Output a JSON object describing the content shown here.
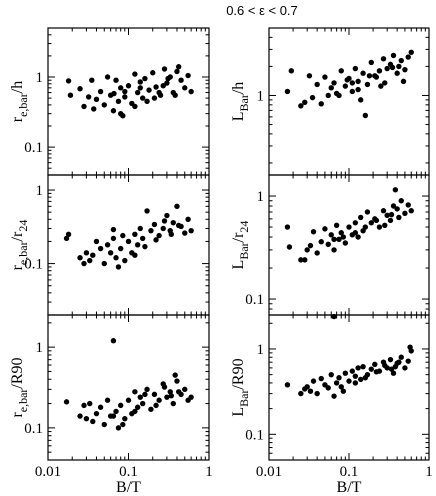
{
  "figure": {
    "title": "0.6 < ε < 0.7"
  },
  "chart_data": [
    {
      "type": "scatter",
      "position": "top-left",
      "xlabel": "",
      "ylabel_main": "r",
      "ylabel_sub": "e,bar",
      "ylabel_rest": "/h",
      "xscale": "log",
      "yscale": "log",
      "xlim": [
        0.01,
        1
      ],
      "ylim": [
        0.04,
        5
      ],
      "yticks": [
        {
          "value": 0.1,
          "label": "0.1"
        },
        {
          "value": 1,
          "label": "1"
        }
      ],
      "xticks": [],
      "x": [
        0.018,
        0.019,
        0.025,
        0.028,
        0.032,
        0.035,
        0.037,
        0.04,
        0.045,
        0.05,
        0.055,
        0.06,
        0.065,
        0.07,
        0.075,
        0.08,
        0.085,
        0.09,
        0.1,
        0.11,
        0.12,
        0.13,
        0.14,
        0.15,
        0.16,
        0.18,
        0.2,
        0.22,
        0.25,
        0.28,
        0.3,
        0.33,
        0.36,
        0.4,
        0.45,
        0.5,
        0.55,
        0.6,
        0.08,
        0.12,
        0.17,
        0.24,
        0.31,
        0.38,
        0.42,
        0.27,
        0.21,
        0.14,
        0.09,
        0.066
      ],
      "y": [
        0.88,
        0.55,
        0.68,
        0.38,
        0.52,
        0.9,
        0.35,
        0.48,
        0.62,
        0.4,
        1.0,
        0.55,
        0.33,
        0.9,
        0.45,
        0.7,
        0.28,
        0.52,
        0.75,
        0.42,
        1.1,
        0.6,
        0.85,
        0.5,
        0.95,
        0.65,
        1.15,
        0.72,
        0.55,
        1.3,
        0.82,
        1.0,
        0.6,
        1.2,
        0.9,
        0.7,
        1.05,
        0.62,
        0.3,
        0.38,
        0.45,
        0.6,
        0.95,
        0.55,
        1.4,
        0.75,
        0.5,
        0.7,
        0.62,
        0.58
      ]
    },
    {
      "type": "scatter",
      "position": "top-right",
      "xlabel": "",
      "ylabel_main": "L",
      "ylabel_sub": "Bar",
      "ylabel_rest": "/h",
      "xscale": "log",
      "yscale": "log",
      "xlim": [
        0.01,
        1
      ],
      "ylim": [
        0.15,
        5
      ],
      "yticks": [
        {
          "value": 1,
          "label": "1"
        }
      ],
      "xticks": [],
      "x": [
        0.017,
        0.019,
        0.025,
        0.028,
        0.032,
        0.035,
        0.04,
        0.045,
        0.05,
        0.055,
        0.06,
        0.065,
        0.07,
        0.08,
        0.09,
        0.1,
        0.11,
        0.12,
        0.13,
        0.14,
        0.15,
        0.17,
        0.19,
        0.21,
        0.24,
        0.27,
        0.3,
        0.33,
        0.36,
        0.4,
        0.45,
        0.5,
        0.55,
        0.6,
        0.075,
        0.095,
        0.16,
        0.22,
        0.28,
        0.35,
        0.42,
        0.48,
        0.25,
        0.18,
        0.13,
        0.11
      ],
      "y": [
        1.1,
        1.8,
        0.78,
        0.85,
        1.6,
        0.95,
        1.3,
        0.82,
        1.55,
        1.0,
        1.2,
        1.35,
        1.05,
        1.8,
        1.25,
        1.5,
        1.1,
        1.9,
        1.4,
        0.9,
        1.7,
        1.3,
        2.2,
        1.6,
        1.8,
        2.4,
        1.9,
        2.1,
        2.6,
        1.7,
        2.3,
        1.85,
        2.5,
        2.8,
        1.0,
        1.45,
        0.62,
        1.55,
        1.35,
        1.95,
        2.0,
        1.4,
        1.25,
        1.6,
        1.15,
        1.35
      ]
    },
    {
      "type": "scatter",
      "position": "middle-left",
      "xlabel": "",
      "ylabel_main": "r",
      "ylabel_sub": "e,bar",
      "ylabel_rest": "/r",
      "ylabel_rest_sub": "24",
      "xscale": "log",
      "yscale": "log",
      "xlim": [
        0.01,
        1
      ],
      "ylim": [
        0.02,
        1.6
      ],
      "yticks": [
        {
          "value": 0.1,
          "label": "0.1"
        },
        {
          "value": 1,
          "label": "1"
        }
      ],
      "xticks": [],
      "x": [
        0.017,
        0.018,
        0.025,
        0.028,
        0.03,
        0.033,
        0.036,
        0.04,
        0.045,
        0.05,
        0.055,
        0.06,
        0.065,
        0.07,
        0.075,
        0.08,
        0.09,
        0.1,
        0.11,
        0.12,
        0.13,
        0.14,
        0.15,
        0.17,
        0.19,
        0.21,
        0.24,
        0.27,
        0.3,
        0.33,
        0.36,
        0.4,
        0.45,
        0.5,
        0.55,
        0.6,
        0.085,
        0.16,
        0.22,
        0.28,
        0.34,
        0.42,
        0.12,
        0.065
      ],
      "y": [
        0.22,
        0.25,
        0.12,
        0.1,
        0.14,
        0.11,
        0.13,
        0.2,
        0.16,
        0.1,
        0.18,
        0.14,
        0.22,
        0.12,
        0.09,
        0.16,
        0.11,
        0.2,
        0.14,
        0.25,
        0.18,
        0.3,
        0.22,
        0.52,
        0.28,
        0.34,
        0.24,
        0.3,
        0.45,
        0.28,
        0.36,
        0.6,
        0.32,
        0.26,
        0.4,
        0.28,
        0.24,
        0.17,
        0.21,
        0.38,
        0.25,
        0.33,
        0.13,
        0.29
      ]
    },
    {
      "type": "scatter",
      "position": "middle-right",
      "xlabel": "",
      "ylabel_main": "L",
      "ylabel_sub": "Bar",
      "ylabel_rest": "/r",
      "ylabel_rest_sub": "24",
      "xscale": "log",
      "yscale": "log",
      "xlim": [
        0.01,
        1
      ],
      "ylim": [
        0.07,
        1.6
      ],
      "yticks": [
        {
          "value": 0.1,
          "label": "0.1"
        },
        {
          "value": 1,
          "label": "1"
        }
      ],
      "xticks": [],
      "x": [
        0.017,
        0.018,
        0.025,
        0.028,
        0.03,
        0.033,
        0.036,
        0.04,
        0.045,
        0.05,
        0.055,
        0.06,
        0.065,
        0.07,
        0.075,
        0.08,
        0.09,
        0.1,
        0.11,
        0.12,
        0.13,
        0.14,
        0.15,
        0.17,
        0.19,
        0.21,
        0.24,
        0.27,
        0.3,
        0.33,
        0.36,
        0.4,
        0.45,
        0.5,
        0.55,
        0.6,
        0.085,
        0.16,
        0.22,
        0.28,
        0.34,
        0.42,
        0.12,
        0.065,
        0.38
      ],
      "y": [
        0.5,
        0.32,
        0.24,
        0.24,
        0.3,
        0.33,
        0.45,
        0.28,
        0.36,
        0.48,
        0.34,
        0.42,
        0.3,
        0.52,
        0.38,
        0.44,
        0.35,
        0.5,
        0.42,
        0.55,
        0.4,
        0.62,
        0.46,
        0.7,
        0.55,
        0.6,
        0.5,
        0.72,
        0.65,
        0.58,
        0.8,
        0.75,
        0.9,
        0.68,
        0.82,
        0.72,
        0.4,
        0.5,
        0.58,
        0.52,
        0.66,
        0.62,
        0.44,
        0.38,
        1.15
      ]
    },
    {
      "type": "scatter",
      "position": "bottom-left",
      "xlabel": "B/T",
      "ylabel_main": "r",
      "ylabel_sub": "e,bar",
      "ylabel_rest": "/R90",
      "xscale": "log",
      "yscale": "log",
      "xlim": [
        0.01,
        1
      ],
      "ylim": [
        0.04,
        2.5
      ],
      "yticks": [
        {
          "value": 0.1,
          "label": "0.1"
        },
        {
          "value": 1,
          "label": "1"
        }
      ],
      "xticks": [
        {
          "value": 0.01,
          "label": "0.01"
        },
        {
          "value": 0.1,
          "label": "0.1"
        },
        {
          "value": 1,
          "label": "1"
        }
      ],
      "x": [
        0.017,
        0.025,
        0.028,
        0.03,
        0.033,
        0.036,
        0.04,
        0.045,
        0.05,
        0.055,
        0.06,
        0.065,
        0.07,
        0.075,
        0.08,
        0.09,
        0.1,
        0.11,
        0.12,
        0.13,
        0.14,
        0.15,
        0.17,
        0.19,
        0.21,
        0.24,
        0.27,
        0.3,
        0.33,
        0.36,
        0.4,
        0.45,
        0.5,
        0.55,
        0.6,
        0.085,
        0.16,
        0.22,
        0.28,
        0.34,
        0.42,
        0.12,
        0.065,
        0.38
      ],
      "y": [
        0.21,
        0.14,
        0.19,
        0.13,
        0.2,
        0.12,
        0.15,
        0.18,
        0.11,
        0.22,
        0.14,
        1.2,
        0.16,
        0.1,
        0.19,
        0.13,
        0.22,
        0.15,
        0.28,
        0.18,
        0.24,
        0.2,
        0.3,
        0.17,
        0.26,
        0.22,
        0.35,
        0.24,
        0.28,
        0.2,
        0.38,
        0.26,
        0.3,
        0.22,
        0.24,
        0.11,
        0.26,
        0.19,
        0.32,
        0.25,
        0.28,
        0.16,
        0.14,
        0.45
      ]
    },
    {
      "type": "scatter",
      "position": "bottom-right",
      "xlabel": "B/T",
      "ylabel_main": "L",
      "ylabel_sub": "Bar",
      "ylabel_rest": "/R90",
      "xscale": "log",
      "yscale": "log",
      "xlim": [
        0.01,
        1
      ],
      "ylim": [
        0.05,
        2.5
      ],
      "yticks": [
        {
          "value": 0.1,
          "label": "0.1"
        },
        {
          "value": 1,
          "label": "1"
        }
      ],
      "xticks": [
        {
          "value": 0.01,
          "label": "0.01"
        },
        {
          "value": 0.1,
          "label": "0.1"
        },
        {
          "value": 1,
          "label": "1"
        }
      ],
      "x": [
        0.017,
        0.025,
        0.028,
        0.03,
        0.033,
        0.036,
        0.04,
        0.045,
        0.05,
        0.055,
        0.06,
        0.065,
        0.07,
        0.075,
        0.08,
        0.09,
        0.1,
        0.11,
        0.12,
        0.13,
        0.14,
        0.15,
        0.17,
        0.19,
        0.21,
        0.24,
        0.27,
        0.3,
        0.33,
        0.36,
        0.4,
        0.45,
        0.5,
        0.55,
        0.6,
        0.085,
        0.16,
        0.22,
        0.28,
        0.34,
        0.42,
        0.12,
        0.065,
        0.38,
        0.58
      ],
      "y": [
        0.38,
        0.3,
        0.34,
        0.36,
        0.32,
        0.42,
        0.3,
        0.45,
        0.38,
        0.35,
        0.5,
        2.4,
        0.4,
        0.46,
        0.36,
        0.52,
        0.42,
        0.55,
        0.48,
        0.6,
        0.44,
        0.62,
        0.5,
        0.58,
        0.66,
        0.55,
        0.7,
        0.6,
        0.75,
        0.52,
        0.68,
        0.8,
        0.6,
        0.72,
        0.95,
        0.32,
        0.46,
        0.54,
        0.64,
        0.58,
        0.7,
        0.4,
        0.28,
        0.62,
        1.05
      ]
    }
  ]
}
